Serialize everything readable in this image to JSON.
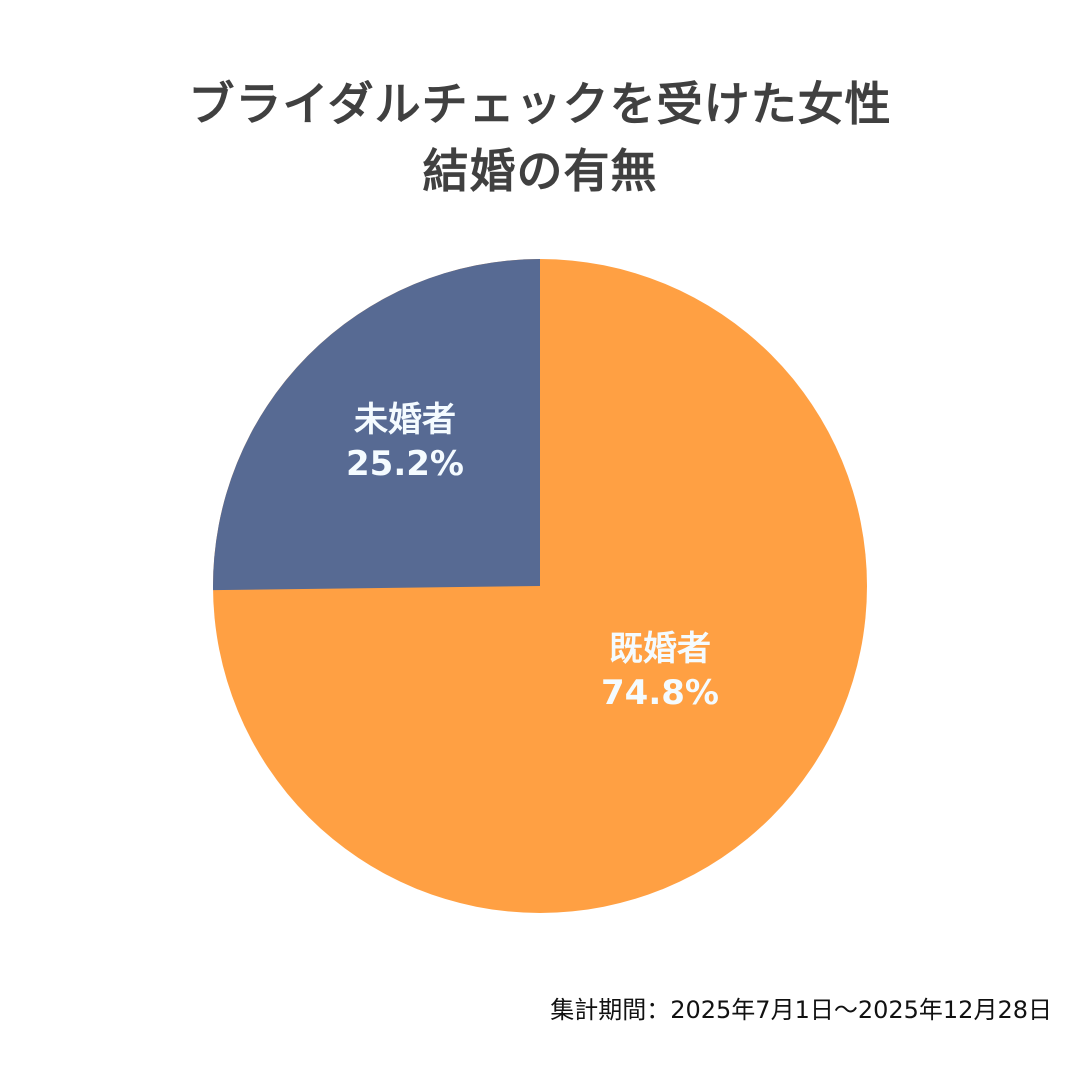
{
  "title": {
    "line1": "ブライダルチェックを受けた女性",
    "line2": "結婚の有無"
  },
  "footnote": "集計期間：2025年7月1日〜2025年12月28日",
  "colors": {
    "married": "#FFA043",
    "unmarried": "#576A93",
    "title_text": "#404040",
    "label_text": "#F4FBFF"
  },
  "slices": [
    {
      "name": "既婚者",
      "pct_label": "74.8%",
      "value": 74.8,
      "color": "#FFA043"
    },
    {
      "name": "未婚者",
      "pct_label": "25.2%",
      "value": 25.2,
      "color": "#576A93"
    }
  ],
  "chart_data": {
    "type": "pie",
    "title": "ブライダルチェックを受けた女性 結婚の有無",
    "categories": [
      "既婚者",
      "未婚者"
    ],
    "values": [
      74.8,
      25.2
    ],
    "unit": "%",
    "colors": [
      "#FFA043",
      "#576A93"
    ],
    "start_angle": "12 o'clock",
    "direction": "既婚者 clockwise from top; 未婚者 counterclockwise from top",
    "data_labels": [
      "既婚者 74.8%",
      "未婚者 25.2%"
    ],
    "legend": "none (labels inside slices)",
    "note": "集計期間：2025年7月1日〜2025年12月28日"
  }
}
